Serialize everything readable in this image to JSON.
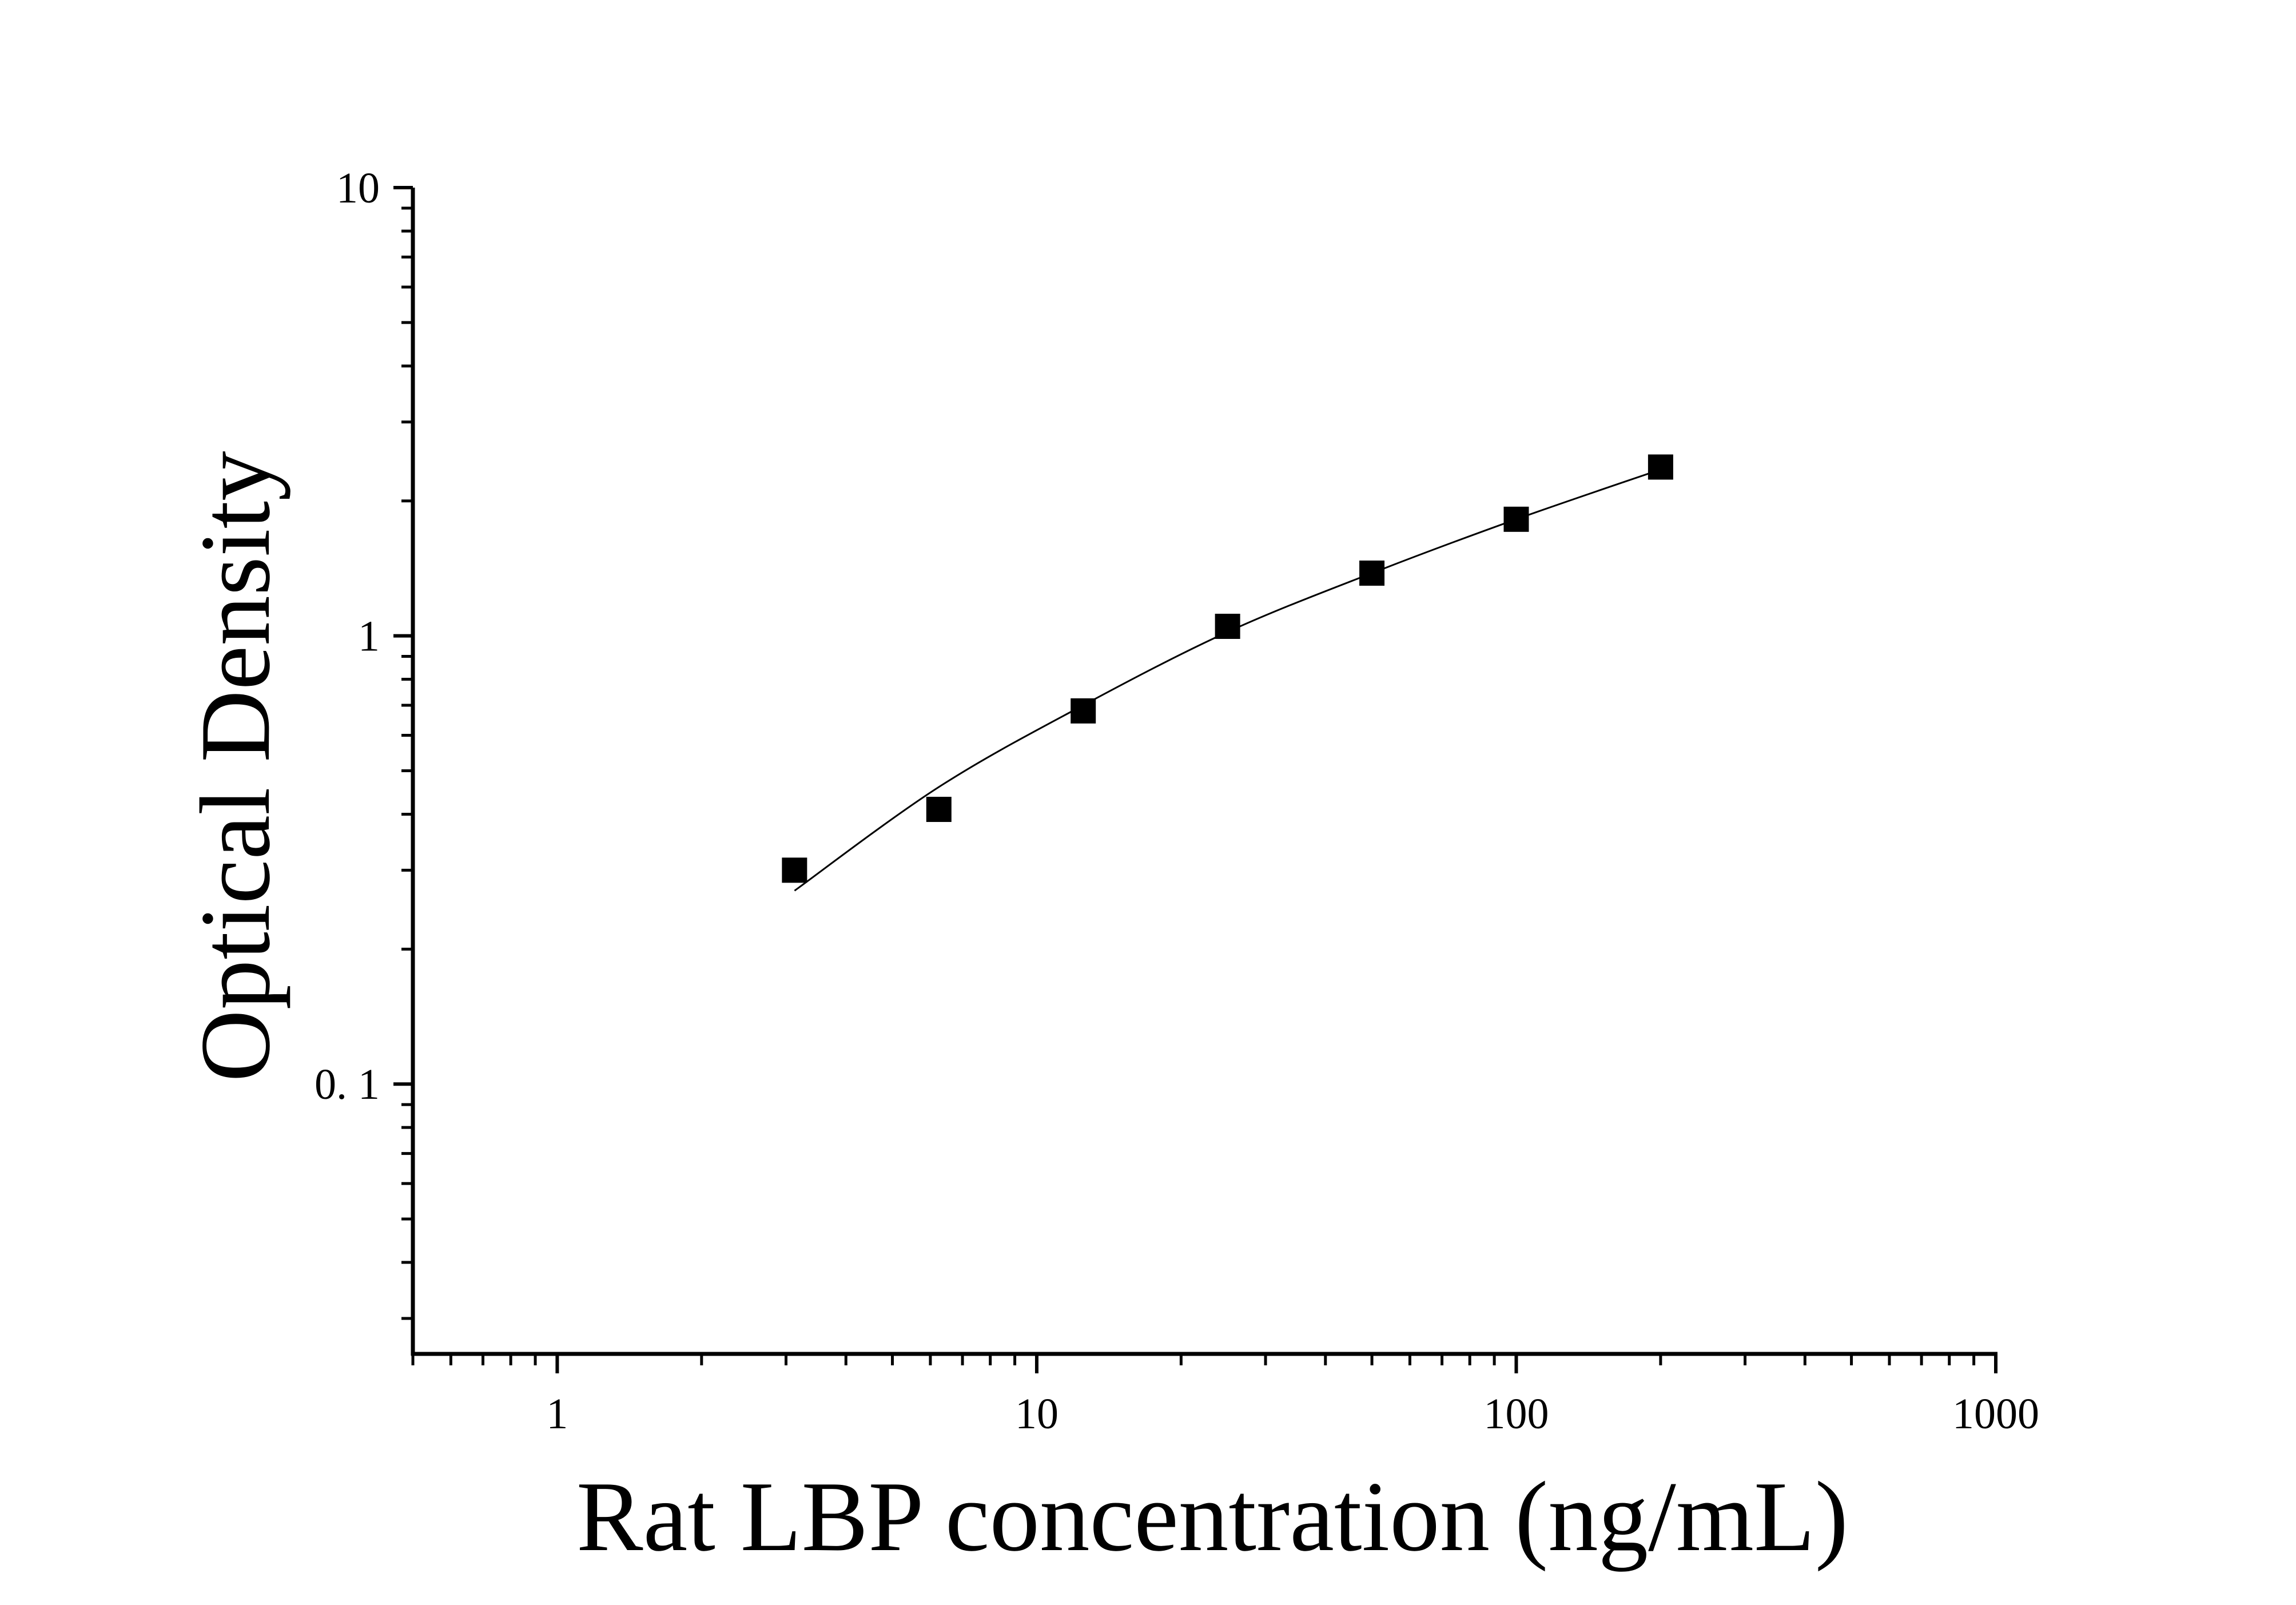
{
  "chart_data": {
    "type": "scatter",
    "xscale": "log",
    "yscale": "log",
    "xlabel": "Rat LBP concentration (ng/mL)",
    "ylabel": "Optical Density",
    "xlim": [
      0.5,
      1000
    ],
    "ylim": [
      0.025,
      10
    ],
    "xticks": [
      {
        "value": 1,
        "label": "1"
      },
      {
        "value": 10,
        "label": "10"
      },
      {
        "value": 100,
        "label": "100"
      },
      {
        "value": 1000,
        "label": "1000"
      }
    ],
    "yticks": [
      {
        "value": 0.1,
        "label": "0. 1"
      },
      {
        "value": 1,
        "label": "1"
      },
      {
        "value": 10,
        "label": "10"
      }
    ],
    "grid": false,
    "series": [
      {
        "marker": "square",
        "color": "#000000",
        "points": [
          {
            "x": 3.125,
            "y": 0.3
          },
          {
            "x": 6.25,
            "y": 0.41
          },
          {
            "x": 12.5,
            "y": 0.68
          },
          {
            "x": 25,
            "y": 1.05
          },
          {
            "x": 50,
            "y": 1.38
          },
          {
            "x": 100,
            "y": 1.82
          },
          {
            "x": 200,
            "y": 2.38
          }
        ]
      }
    ],
    "fit_curve": {
      "color": "#000000",
      "points": [
        {
          "x": 3.125,
          "y": 0.27
        },
        {
          "x": 6.25,
          "y": 0.46
        },
        {
          "x": 12.5,
          "y": 0.7
        },
        {
          "x": 25,
          "y": 1.02
        },
        {
          "x": 50,
          "y": 1.38
        },
        {
          "x": 100,
          "y": 1.82
        },
        {
          "x": 200,
          "y": 2.35
        }
      ]
    }
  }
}
